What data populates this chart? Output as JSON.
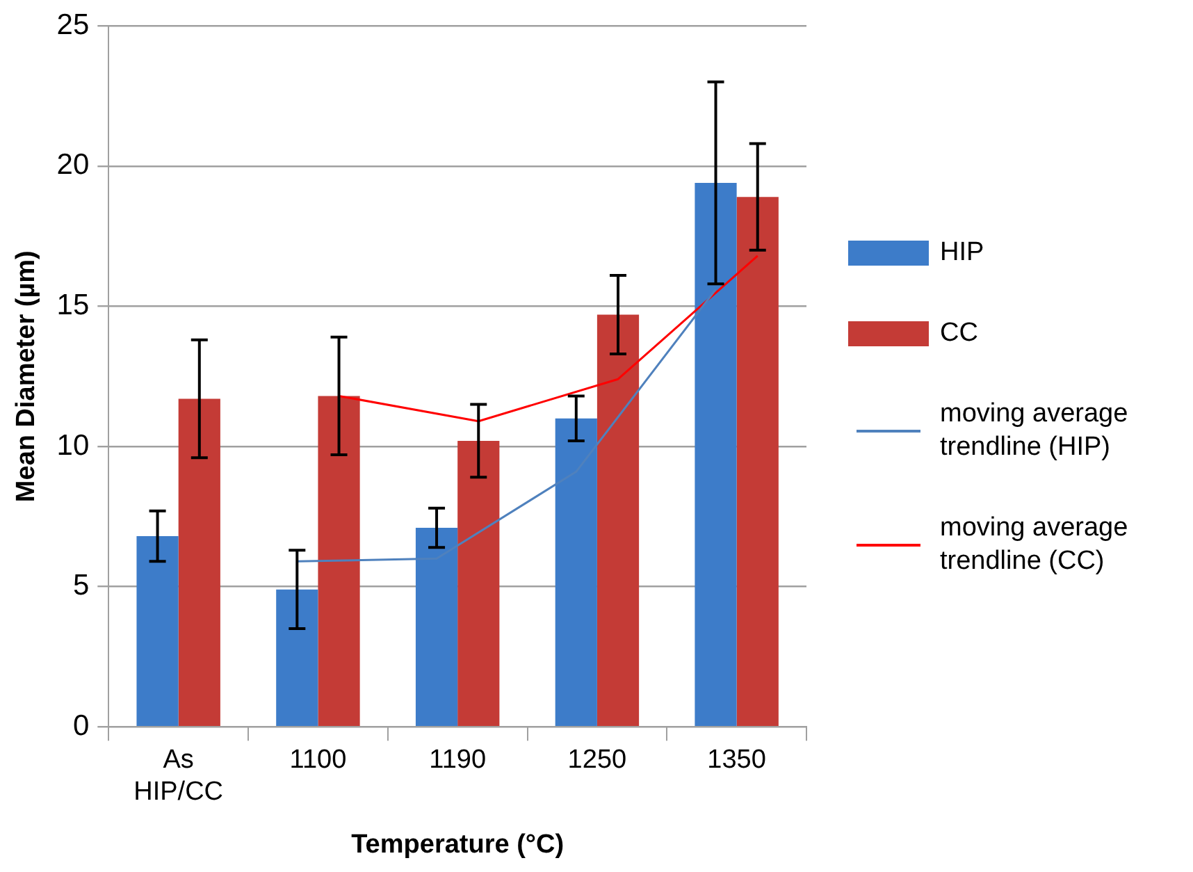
{
  "chart_data": {
    "type": "bar",
    "xlabel": "Temperature (°C)",
    "ylabel": "Mean Diameter (µm)",
    "categories": [
      "As HIP/CC",
      "1100",
      "1190",
      "1250",
      "1350"
    ],
    "series": [
      {
        "name": "HIP",
        "color": "#3d7cc9",
        "values": [
          6.8,
          4.9,
          7.1,
          11.0,
          19.4
        ],
        "errors": [
          0.9,
          1.4,
          0.7,
          0.8,
          3.6
        ]
      },
      {
        "name": "CC",
        "color": "#c43b36",
        "values": [
          11.7,
          11.8,
          10.2,
          14.7,
          18.9
        ],
        "errors": [
          2.1,
          2.1,
          1.3,
          1.4,
          1.9
        ]
      },
      {
        "name": "moving average trendline (HIP)",
        "type": "line",
        "color": "#4f81bd",
        "values": [
          null,
          5.9,
          6.0,
          9.1,
          15.6
        ]
      },
      {
        "name": "moving average trendline (CC)",
        "type": "line",
        "color": "#ff0000",
        "values": [
          null,
          11.8,
          10.9,
          12.4,
          16.8
        ]
      }
    ],
    "ylim": [
      0,
      25
    ],
    "yticks": [
      0,
      5,
      10,
      15,
      20,
      25
    ],
    "grid": "y",
    "legend": "right",
    "marker": "none"
  }
}
